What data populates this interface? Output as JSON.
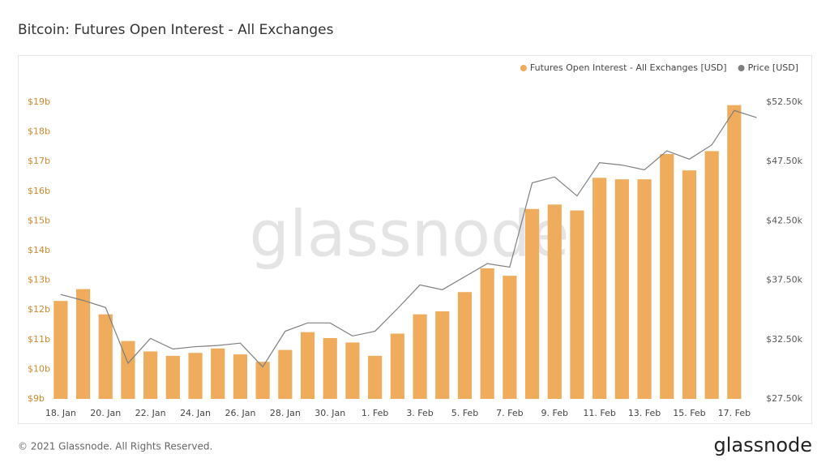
{
  "chart_data": {
    "type": "bar",
    "title": "Bitcoin: Futures Open Interest - All Exchanges",
    "watermark": "glassnode",
    "footer": "© 2021 Glassnode. All Rights Reserved.",
    "brand": "glassnode",
    "categories": [
      "18. Jan",
      null,
      "20. Jan",
      null,
      "22. Jan",
      null,
      "24. Jan",
      null,
      "26. Jan",
      null,
      "28. Jan",
      null,
      "30. Jan",
      null,
      "1. Feb",
      null,
      "3. Feb",
      null,
      "5. Feb",
      null,
      "7. Feb",
      null,
      "9. Feb",
      null,
      "11. Feb",
      null,
      "13. Feb",
      null,
      "15. Feb",
      null,
      "17. Feb",
      null
    ],
    "series": [
      {
        "name": "Futures Open Interest - All Exchanges [USD]",
        "type": "bar",
        "color": "#efac5c",
        "values": [
          12.3,
          12.7,
          11.85,
          10.95,
          10.6,
          10.45,
          10.55,
          10.7,
          10.5,
          10.25,
          10.65,
          11.25,
          11.05,
          10.9,
          10.45,
          11.2,
          11.85,
          11.95,
          12.6,
          13.4,
          13.15,
          15.4,
          15.55,
          15.35,
          16.45,
          16.4,
          16.4,
          17.25,
          16.7,
          17.35,
          18.9,
          null
        ]
      },
      {
        "name": "Price [USD]",
        "type": "line",
        "axis": "y2",
        "color": "#7f7f7f",
        "values": [
          36.3,
          35.8,
          35.2,
          30.5,
          32.6,
          31.7,
          31.9,
          32.0,
          32.2,
          30.2,
          33.2,
          33.9,
          33.9,
          32.8,
          33.2,
          35.1,
          37.1,
          36.7,
          37.8,
          38.9,
          38.6,
          45.7,
          46.2,
          44.6,
          47.4,
          47.2,
          46.8,
          48.4,
          47.7,
          48.9,
          51.8,
          51.2
        ]
      }
    ],
    "ylim": [
      9,
      19
    ],
    "yticks": [
      {
        "value": 9,
        "label": "$9b"
      },
      {
        "value": 10,
        "label": "$10b"
      },
      {
        "value": 11,
        "label": "$11b"
      },
      {
        "value": 12,
        "label": "$12b"
      },
      {
        "value": 13,
        "label": "$13b"
      },
      {
        "value": 14,
        "label": "$14b"
      },
      {
        "value": 15,
        "label": "$15b"
      },
      {
        "value": 16,
        "label": "$16b"
      },
      {
        "value": 17,
        "label": "$17b"
      },
      {
        "value": 18,
        "label": "$18b"
      },
      {
        "value": 19,
        "label": "$19b"
      }
    ],
    "y2lim": [
      27.5,
      52.5
    ],
    "y2ticks": [
      {
        "value": 27.5,
        "label": "$27.50k"
      },
      {
        "value": 32.5,
        "label": "$32.50k"
      },
      {
        "value": 37.5,
        "label": "$37.50k"
      },
      {
        "value": 42.5,
        "label": "$42.50k"
      },
      {
        "value": 47.5,
        "label": "$47.50k"
      },
      {
        "value": 52.5,
        "label": "$52.50k"
      }
    ],
    "grid": false,
    "legend": "top-right"
  }
}
